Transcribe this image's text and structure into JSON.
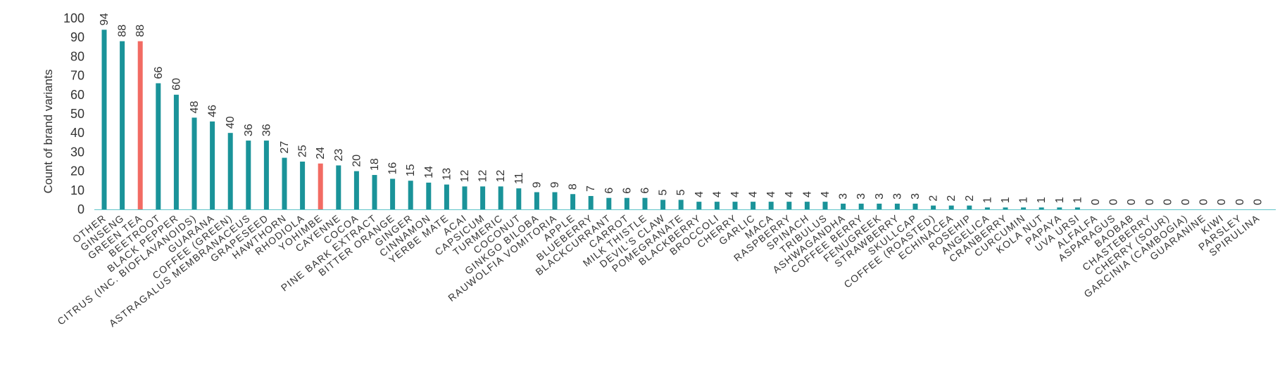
{
  "chart_data": {
    "type": "bar",
    "title": "",
    "xlabel": "",
    "ylabel": "Count of brand variants",
    "ylim": [
      0,
      100
    ],
    "yticks": [
      0,
      10,
      20,
      30,
      40,
      50,
      60,
      70,
      80,
      90,
      100
    ],
    "grid": false,
    "legend": "none",
    "colors": {
      "default": "#1a9399",
      "highlight": "#f26b63",
      "axis": "#5fc4c8"
    },
    "highlighted_categories": [
      "GREEN TEA",
      "YOHIMBE"
    ],
    "categories": [
      "OTHER",
      "GINSENG",
      "GREEN TEA",
      "BEETROOT",
      "BLACK PEPPER",
      "CITRUS (INC. BIOFLAVANOIDS)",
      "GUARANA",
      "COFFEE (GREEN)",
      "ASTRAGALUS MEMBRANACEUS",
      "GRAPESEED",
      "HAWTHORN",
      "RHODIOLA",
      "YOHIMBE",
      "CAYENNE",
      "COCOA",
      "PINE BARK EXTRACT",
      "BITTER ORANGE",
      "GINGER",
      "CINNAMON",
      "YERBE MATE",
      "ACAI",
      "CAPSICUM",
      "TURMERIC",
      "COCONUT",
      "GINKGO BILOBA",
      "RAUWOLFIA VOMITORIA",
      "APPLE",
      "BLUEBERRY",
      "BLACKCURRANT",
      "CARROT",
      "MILK THISTLE",
      "DEVIL'S CLAW",
      "POMEGRANATE",
      "BLACKBERRY",
      "BROCCOLI",
      "CHERRY",
      "GARLIC",
      "MACA",
      "RASPBERRY",
      "SPINACH",
      "TRIBULUS",
      "ASHWAGANDHA",
      "COFFEE BERRY",
      "FENUGREEK",
      "STRAWBERRY",
      "SKULLCAP",
      "COFFEE (ROASTED)",
      "ECHINACEA",
      "ROSEHIP",
      "ANGELICA",
      "CRANBERRY",
      "CURCUMIN",
      "KOLA NUT",
      "PAPAYA",
      "UVA URSI",
      "ALFALFA",
      "ASPARAGUS",
      "BAOBAB",
      "CHASTEBERRY",
      "CHERRY (SOUR)",
      "GARCINIA (CAMBOGIA)",
      "GUARANINE",
      "KIWI",
      "PARSLEY",
      "SPIRULINA"
    ],
    "values": [
      94,
      88,
      88,
      66,
      60,
      48,
      46,
      40,
      36,
      36,
      27,
      25,
      24,
      23,
      20,
      18,
      16,
      15,
      14,
      13,
      12,
      12,
      12,
      11,
      9,
      9,
      8,
      7,
      6,
      6,
      6,
      5,
      5,
      4,
      4,
      4,
      4,
      4,
      4,
      4,
      4,
      3,
      3,
      3,
      3,
      3,
      2,
      2,
      2,
      1,
      1,
      1,
      1,
      1,
      1,
      0,
      0,
      0,
      0,
      0,
      0,
      0,
      0,
      0,
      0
    ]
  }
}
